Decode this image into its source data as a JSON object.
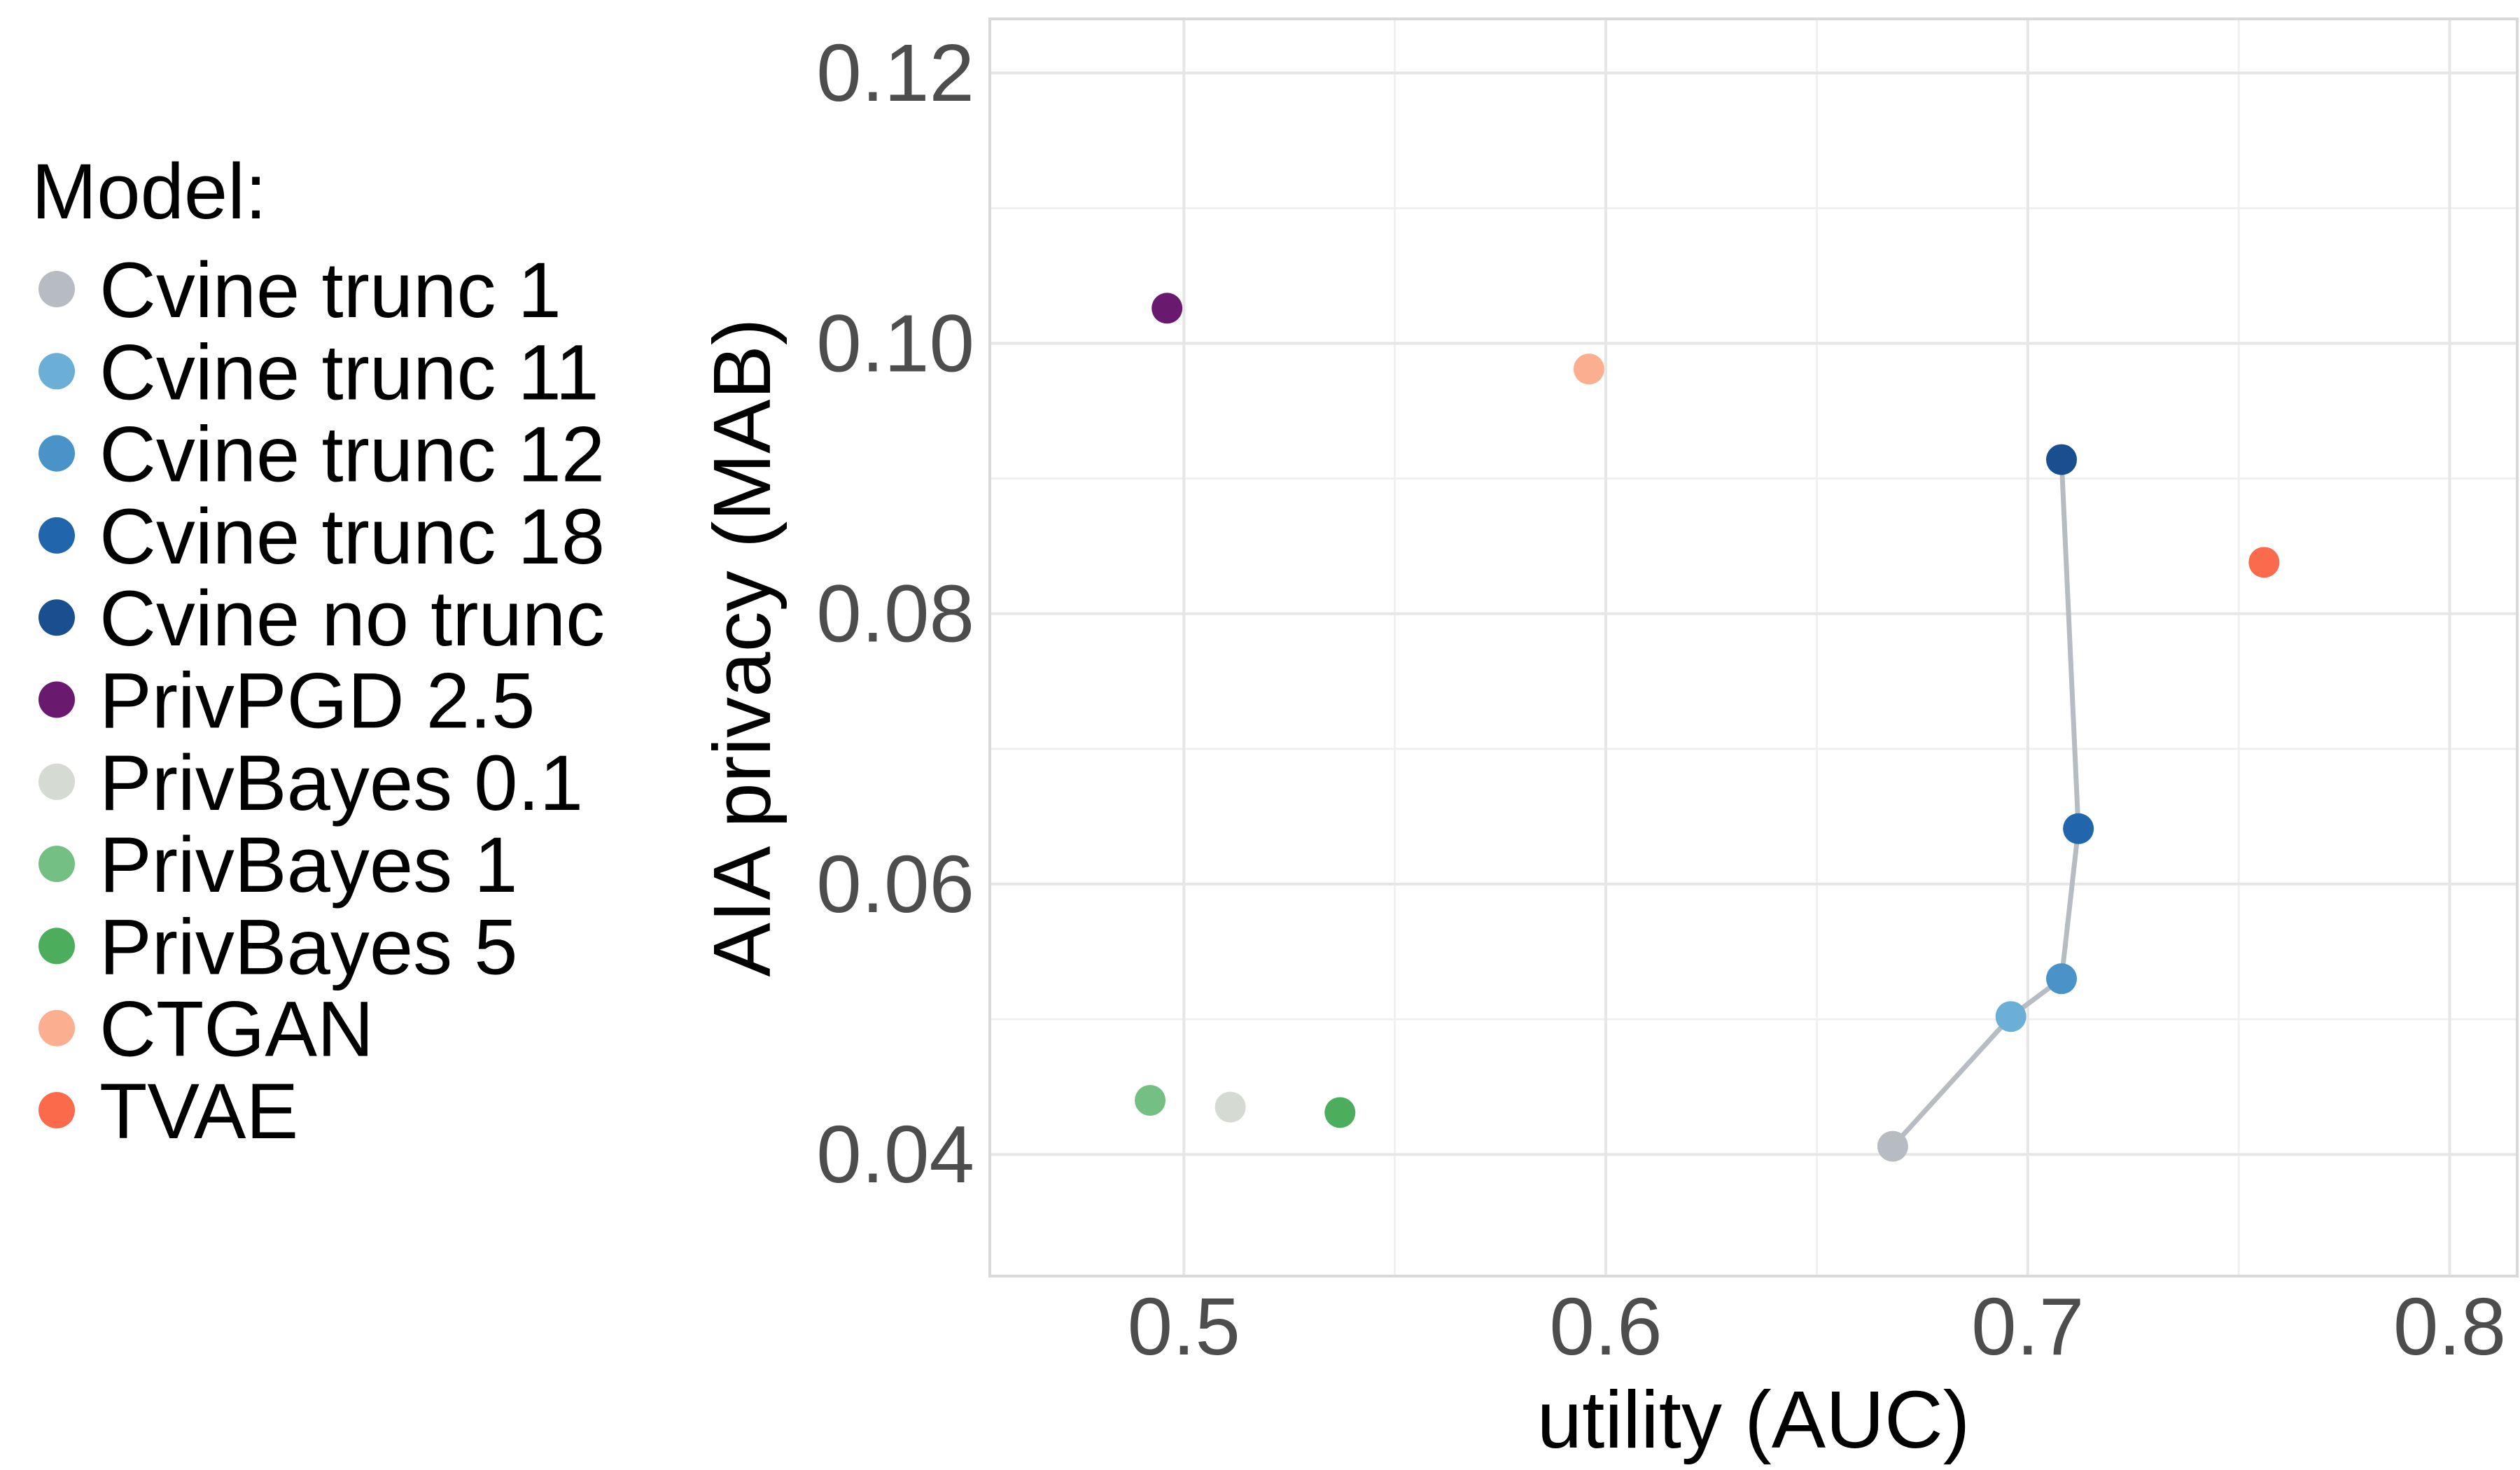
{
  "chart_data": {
    "type": "scatter",
    "title": "",
    "xlabel": "utility (AUC)",
    "ylabel": "AIA privacy (MAB)",
    "xlim": [
      0.454,
      0.816
    ],
    "ylim": [
      0.031,
      0.124
    ],
    "x_ticks": [
      0.5,
      0.6,
      0.7,
      0.8
    ],
    "x_tick_labels": [
      "0.5",
      "0.6",
      "0.7",
      "0.8"
    ],
    "y_ticks": [
      0.04,
      0.06,
      0.08,
      0.1,
      0.12
    ],
    "y_tick_labels": [
      "0.04",
      "0.06",
      "0.08",
      "0.10",
      "0.12"
    ],
    "grid": true,
    "legend_title": "Model:",
    "legend_position": "left",
    "series": [
      {
        "name": "Cvine trunc 1",
        "color": "#b6bcc1",
        "x": 0.668,
        "y": 0.0406
      },
      {
        "name": "Cvine trunc 11",
        "color": "#6baed6",
        "x": 0.696,
        "y": 0.0502
      },
      {
        "name": "Cvine trunc 12",
        "color": "#4a93c8",
        "x": 0.708,
        "y": 0.053
      },
      {
        "name": "Cvine trunc 18",
        "color": "#2166ac",
        "x": 0.712,
        "y": 0.0641
      },
      {
        "name": "Cvine no trunc",
        "color": "#1a4f8f",
        "x": 0.708,
        "y": 0.0914
      },
      {
        "name": "PrivPGD 2.5",
        "color": "#6a1a6e",
        "x": 0.496,
        "y": 0.1026
      },
      {
        "name": "PrivBayes 0.1",
        "color": "#d5dbd3",
        "x": 0.511,
        "y": 0.0435
      },
      {
        "name": "PrivBayes 1",
        "color": "#74c084",
        "x": 0.492,
        "y": 0.044
      },
      {
        "name": "PrivBayes 5",
        "color": "#4cae5c",
        "x": 0.537,
        "y": 0.0431
      },
      {
        "name": "CTGAN",
        "color": "#fcae91",
        "x": 0.596,
        "y": 0.0981
      },
      {
        "name": "TVAE",
        "color": "#fb6a4a",
        "x": 0.756,
        "y": 0.0838
      }
    ],
    "connecting_line": {
      "color": "#b6bcc1",
      "points": [
        {
          "x": 0.668,
          "y": 0.0406
        },
        {
          "x": 0.696,
          "y": 0.0502
        },
        {
          "x": 0.708,
          "y": 0.053
        },
        {
          "x": 0.712,
          "y": 0.0641
        },
        {
          "x": 0.708,
          "y": 0.0914
        }
      ]
    }
  }
}
